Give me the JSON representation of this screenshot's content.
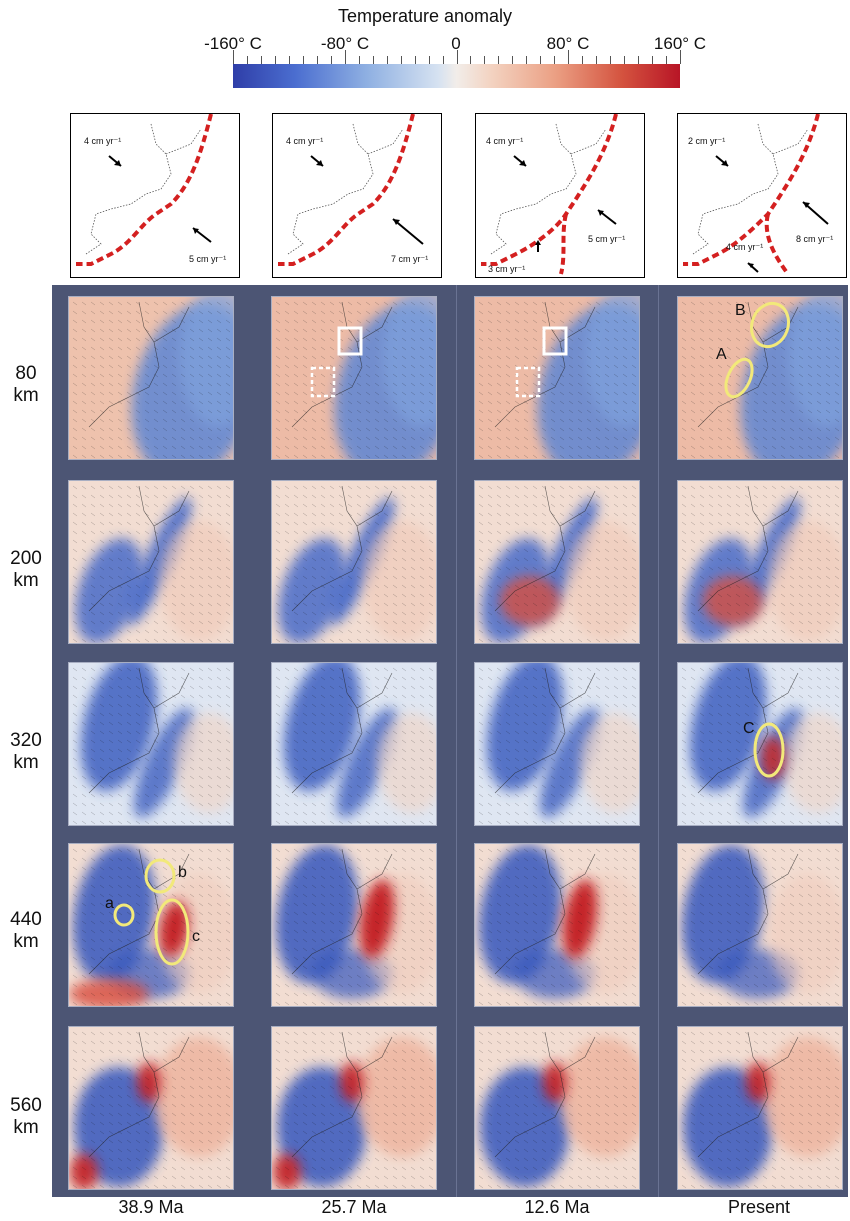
{
  "colorbar": {
    "title": "Temperature anomaly",
    "tick_labels": [
      "-160° C",
      "-80° C",
      "0",
      "80° C",
      "160° C"
    ],
    "range": [
      -160,
      160
    ],
    "colors": {
      "low": "#2f3ea8",
      "mid": "#f2ede9",
      "high": "#b81526"
    }
  },
  "plate_maps": [
    {
      "upper_rate": "4 cm yr⁻¹",
      "lower_rate": "5 cm yr⁻¹"
    },
    {
      "upper_rate": "4 cm yr⁻¹",
      "lower_rate": "7 cm yr⁻¹"
    },
    {
      "upper_rate": "4 cm yr⁻¹",
      "lower_rate": "5 cm yr⁻¹",
      "extra_rate": "3 cm yr⁻¹"
    },
    {
      "upper_rate": "2 cm yr⁻¹",
      "lower_rate": "8 cm yr⁻¹",
      "extra_rate": "4 cm yr⁻¹"
    }
  ],
  "depths": [
    {
      "value": "80",
      "unit": "km"
    },
    {
      "value": "200",
      "unit": "km"
    },
    {
      "value": "320",
      "unit": "km"
    },
    {
      "value": "440",
      "unit": "km"
    },
    {
      "value": "560",
      "unit": "km"
    }
  ],
  "ages": [
    "38.9 Ma",
    "25.7 Ma",
    "12.6 Ma",
    "Present"
  ],
  "annotations": {
    "A": "A",
    "B": "B",
    "C": "C",
    "a": "a",
    "b": "b",
    "c": "c"
  },
  "colors": {
    "background": "#4c5574",
    "trench": "#d42020",
    "highlight": "#f2e97a"
  }
}
